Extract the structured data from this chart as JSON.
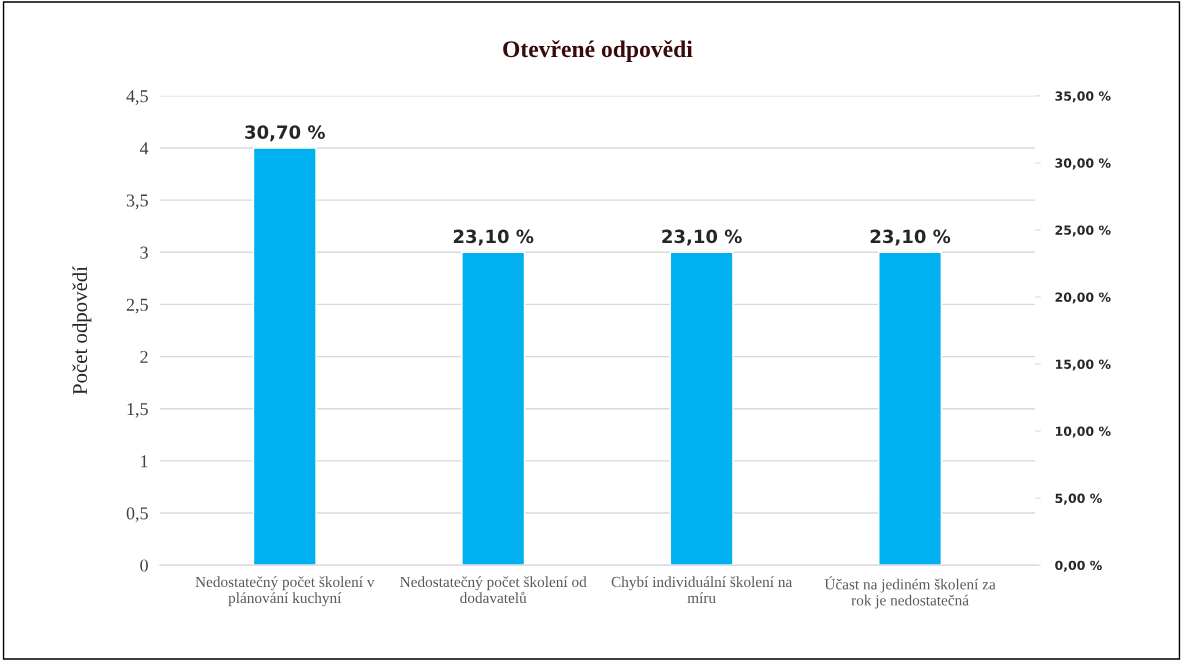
{
  "chart_data": {
    "type": "bar",
    "title": "Otevřené odpovědi",
    "ylabel": "Počet odpovědí",
    "categories": [
      "Nedostatečný počet školení v plánování kuchyní",
      "Nedostatečný počet školení od dodavatelů",
      "Chybí individuální školení na míru",
      "Účast na jediném školení za rok je nedostatečná"
    ],
    "values": [
      4,
      3,
      3,
      3
    ],
    "annotations": [
      {
        "text": "30,70 %",
        "x": "Nedostatečný počet školení v plánování kuchyní",
        "y": 4
      },
      {
        "text": "23,10 %",
        "x": "Nedostatečný počet školení od dodavatelů",
        "y": 3
      },
      {
        "text": "23,10 %",
        "x": "Chybí individuální školení na míru",
        "y": 3
      },
      {
        "text": "23,10 %",
        "x": "Účast na jediném školení za rok je nedostatečná",
        "y": 3
      }
    ],
    "color": "#00b0f0",
    "ylim": [
      0,
      4.5
    ],
    "yticks": [
      0,
      {
        "value": 0.5,
        "label": "0,5"
      },
      1,
      {
        "value": 1.5,
        "label": "1,5"
      },
      2,
      {
        "value": 2.5,
        "label": "2,5"
      },
      3,
      {
        "value": 3.5,
        "label": "3,5"
      },
      4,
      {
        "value": 4.5,
        "label": "4,5"
      }
    ],
    "y2lim": [
      0,
      35
    ],
    "y2ticks": [
      {
        "value": 0,
        "label": "0,00 %"
      },
      {
        "value": 5,
        "label": "5,00 %"
      },
      {
        "value": 10,
        "label": "10,00 %"
      },
      {
        "value": 15,
        "label": "15,00 %"
      },
      {
        "value": 20,
        "label": "20,00 %"
      },
      {
        "value": 25,
        "label": "25,00 %"
      },
      {
        "value": 30,
        "label": "30,00 %"
      },
      {
        "value": 35,
        "label": "35,00 %"
      }
    ],
    "grid": "y",
    "legend": false
  }
}
